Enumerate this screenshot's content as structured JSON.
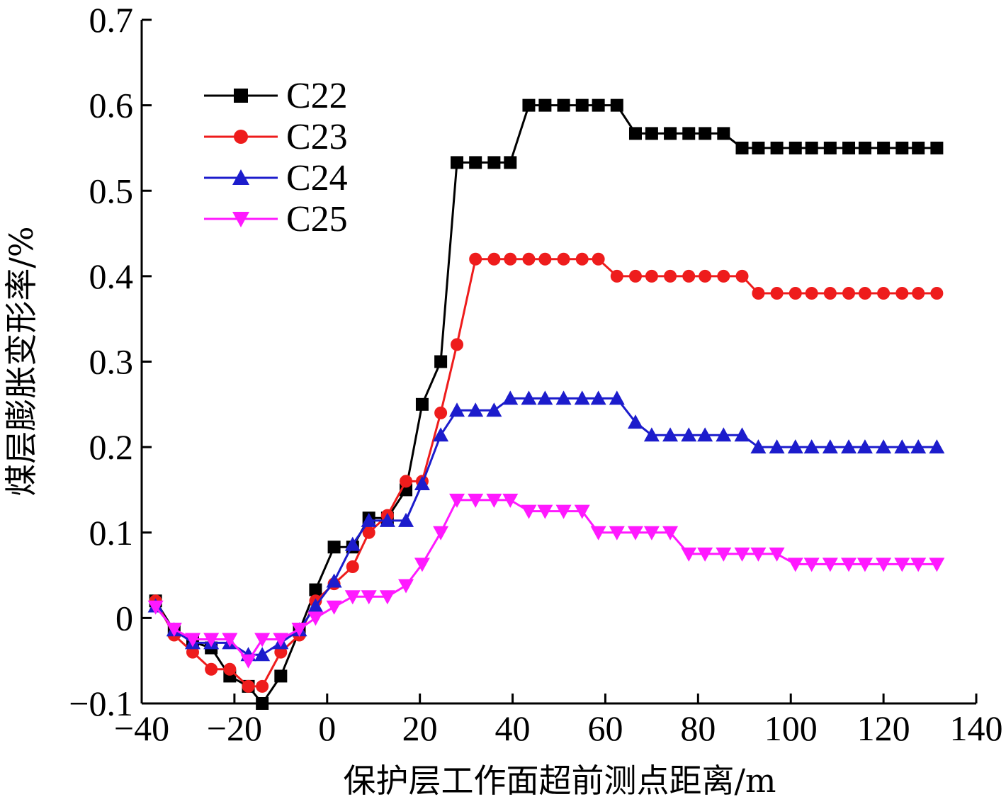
{
  "chart_data": {
    "type": "line",
    "xlabel": "保护层工作面超前测点距离/m",
    "ylabel": "煤层膨胀变形率/%",
    "xlim": [
      -40,
      140
    ],
    "ylim": [
      -0.1,
      0.7
    ],
    "x_ticks": [
      -40,
      -20,
      0,
      20,
      40,
      60,
      80,
      100,
      120,
      140
    ],
    "y_ticks": [
      -0.1,
      0,
      0.1,
      0.2,
      0.3,
      0.4,
      0.5,
      0.6,
      0.7
    ],
    "x_tick_labels": [
      "−40",
      "−20",
      "0",
      "20",
      "40",
      "60",
      "80",
      "100",
      "120",
      "140"
    ],
    "y_tick_labels": [
      "−0.1",
      "0",
      "0.1",
      "0.2",
      "0.3",
      "0.4",
      "0.5",
      "0.6",
      "0.7"
    ],
    "grid": false,
    "legend_position": "top-left",
    "series": [
      {
        "name": "C22",
        "color": "#000000",
        "marker": "square",
        "x": [
          -37,
          -33,
          -29,
          -25,
          -21,
          -17,
          -14,
          -10,
          -6,
          -2.5,
          1.5,
          5.5,
          9,
          13,
          17,
          20.5,
          24.5,
          28,
          32,
          36,
          39.5,
          43.5,
          47,
          51,
          55,
          58.5,
          62.5,
          66.5,
          70,
          74,
          78,
          81.5,
          85.5,
          89.5,
          93,
          97,
          101,
          104.5,
          108.5,
          112.5,
          116,
          120,
          124,
          127.5,
          131.5
        ],
        "y": [
          0.02,
          -0.015,
          -0.028,
          -0.035,
          -0.068,
          -0.08,
          -0.1,
          -0.068,
          -0.015,
          0.033,
          0.083,
          0.083,
          0.117,
          0.117,
          0.15,
          0.25,
          0.3,
          0.533,
          0.533,
          0.533,
          0.533,
          0.6,
          0.6,
          0.6,
          0.6,
          0.6,
          0.6,
          0.567,
          0.567,
          0.567,
          0.567,
          0.567,
          0.567,
          0.55,
          0.55,
          0.55,
          0.55,
          0.55,
          0.55,
          0.55,
          0.55,
          0.55,
          0.55,
          0.55,
          0.55
        ]
      },
      {
        "name": "C23",
        "color": "#ee1c1c",
        "marker": "circle",
        "x": [
          -37,
          -33,
          -29,
          -25,
          -21,
          -17,
          -14,
          -10,
          -6,
          -2.5,
          1.5,
          5.5,
          9,
          13,
          17,
          20.5,
          24.5,
          28,
          32,
          36,
          39.5,
          43.5,
          47,
          51,
          55,
          58.5,
          62.5,
          66.5,
          70,
          74,
          78,
          81.5,
          85.5,
          89.5,
          93,
          97,
          101,
          104.5,
          108.5,
          112.5,
          116,
          120,
          124,
          127.5,
          131.5
        ],
        "y": [
          0.02,
          -0.02,
          -0.04,
          -0.06,
          -0.06,
          -0.08,
          -0.08,
          -0.04,
          -0.02,
          0.02,
          0.04,
          0.06,
          0.1,
          0.12,
          0.16,
          0.16,
          0.24,
          0.32,
          0.42,
          0.42,
          0.42,
          0.42,
          0.42,
          0.42,
          0.42,
          0.42,
          0.4,
          0.4,
          0.4,
          0.4,
          0.4,
          0.4,
          0.4,
          0.4,
          0.38,
          0.38,
          0.38,
          0.38,
          0.38,
          0.38,
          0.38,
          0.38,
          0.38,
          0.38,
          0.38
        ]
      },
      {
        "name": "C24",
        "color": "#1c1ccc",
        "marker": "triangle-up",
        "x": [
          -37,
          -33,
          -29,
          -25,
          -21,
          -17,
          -14,
          -10,
          -6,
          -2.5,
          1.5,
          5.5,
          9,
          13,
          17,
          20.5,
          24.5,
          28,
          32,
          36,
          39.5,
          43.5,
          47,
          51,
          55,
          58.5,
          62.5,
          66.5,
          70,
          74,
          78,
          81.5,
          85.5,
          89.5,
          93,
          97,
          101,
          104.5,
          108.5,
          112.5,
          116,
          120,
          124,
          127.5,
          131.5
        ],
        "y": [
          0.014,
          -0.014,
          -0.029,
          -0.029,
          -0.029,
          -0.043,
          -0.043,
          -0.029,
          -0.014,
          0.014,
          0.043,
          0.086,
          0.114,
          0.114,
          0.114,
          0.157,
          0.214,
          0.243,
          0.243,
          0.243,
          0.257,
          0.257,
          0.257,
          0.257,
          0.257,
          0.257,
          0.257,
          0.229,
          0.214,
          0.214,
          0.214,
          0.214,
          0.214,
          0.214,
          0.2,
          0.2,
          0.2,
          0.2,
          0.2,
          0.2,
          0.2,
          0.2,
          0.2,
          0.2,
          0.2
        ]
      },
      {
        "name": "C25",
        "color": "#ff19ff",
        "marker": "triangle-down",
        "x": [
          -37,
          -33,
          -29,
          -25,
          -21,
          -17,
          -14,
          -10,
          -6,
          -2.5,
          1.5,
          5.5,
          9,
          13,
          17,
          20.5,
          24.5,
          28,
          32,
          36,
          39.5,
          43.5,
          47,
          51,
          55,
          58.5,
          62.5,
          66.5,
          70,
          74,
          78,
          81.5,
          85.5,
          89.5,
          93,
          97,
          101,
          104.5,
          108.5,
          112.5,
          116,
          120,
          124,
          127.5,
          131.5
        ],
        "y": [
          0.013,
          -0.013,
          -0.025,
          -0.025,
          -0.025,
          -0.05,
          -0.025,
          -0.025,
          -0.013,
          0.0,
          0.013,
          0.025,
          0.025,
          0.025,
          0.038,
          0.063,
          0.1,
          0.138,
          0.138,
          0.138,
          0.138,
          0.125,
          0.125,
          0.125,
          0.125,
          0.1,
          0.1,
          0.1,
          0.1,
          0.1,
          0.075,
          0.075,
          0.075,
          0.075,
          0.075,
          0.075,
          0.063,
          0.063,
          0.063,
          0.063,
          0.063,
          0.063,
          0.063,
          0.063,
          0.063
        ]
      }
    ]
  }
}
